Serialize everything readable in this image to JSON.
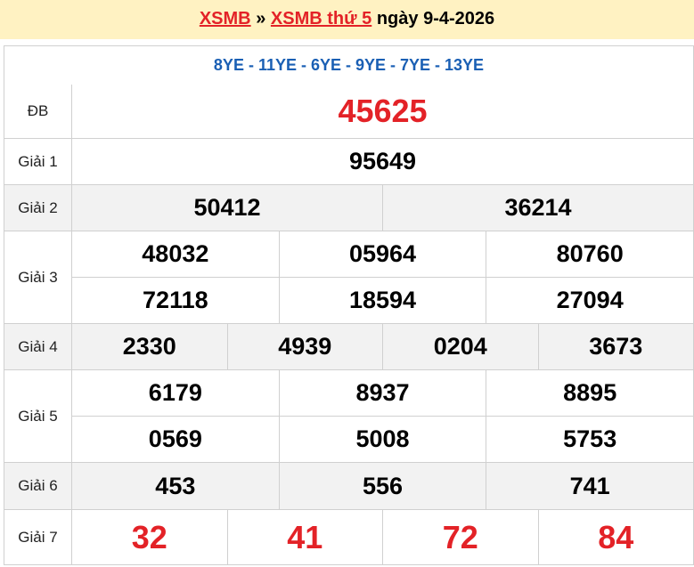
{
  "header": {
    "link1": "XSMB",
    "sep": " » ",
    "link2": "XSMB thứ 5",
    "date": " ngày 9-4-2026"
  },
  "codes": "8YE - 11YE - 6YE - 9YE - 7YE - 13YE",
  "prizes": [
    {
      "label": "ĐB",
      "lines": [
        [
          "45625"
        ]
      ]
    },
    {
      "label": "Giải 1",
      "lines": [
        [
          "95649"
        ]
      ]
    },
    {
      "label": "Giải 2",
      "lines": [
        [
          "50412",
          "36214"
        ]
      ]
    },
    {
      "label": "Giải 3",
      "lines": [
        [
          "48032",
          "05964",
          "80760"
        ],
        [
          "72118",
          "18594",
          "27094"
        ]
      ]
    },
    {
      "label": "Giải 4",
      "lines": [
        [
          "2330",
          "4939",
          "0204",
          "3673"
        ]
      ]
    },
    {
      "label": "Giải 5",
      "lines": [
        [
          "6179",
          "8937",
          "8895"
        ],
        [
          "0569",
          "5008",
          "5753"
        ]
      ]
    },
    {
      "label": "Giải 6",
      "lines": [
        [
          "453",
          "556",
          "741"
        ]
      ]
    },
    {
      "label": "Giải 7",
      "lines": [
        [
          "32",
          "41",
          "72",
          "84"
        ]
      ]
    }
  ],
  "colors": {
    "accent_red": "#e32227",
    "code_blue": "#1a5fb4",
    "header_bg": "#fff2c2"
  }
}
